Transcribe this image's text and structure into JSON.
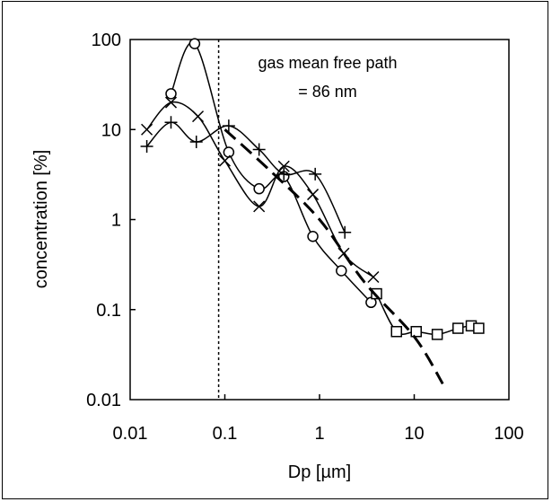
{
  "chart_data": {
    "type": "line",
    "xlabel": "Dp [µm]",
    "ylabel": "concentration [%]",
    "xscale": "log",
    "yscale": "log",
    "xlim": [
      0.01,
      100
    ],
    "ylim": [
      0.01,
      100
    ],
    "x_tick_labels": [
      "0.01",
      "0.1",
      "1",
      "10",
      "100"
    ],
    "y_tick_labels": [
      "100",
      "10",
      "1",
      "0.1",
      "0.01"
    ],
    "annotation": [
      "gas mean free path",
      "= 86 nm"
    ],
    "vertical_line": {
      "x": 0.086,
      "style": "dotted"
    },
    "series": [
      {
        "marker": "circle",
        "x": [
          0.027,
          0.048,
          0.11,
          0.23,
          0.42,
          0.85,
          1.7,
          3.5
        ],
        "y": [
          25,
          90,
          5.6,
          2.2,
          3.0,
          0.65,
          0.27,
          0.12
        ]
      },
      {
        "marker": "x",
        "x": [
          0.015,
          0.027,
          0.052,
          0.1,
          0.23,
          0.42,
          0.85,
          1.8,
          3.7
        ],
        "y": [
          10,
          20,
          14,
          4.5,
          1.4,
          3.9,
          1.9,
          0.42,
          0.23
        ]
      },
      {
        "marker": "plus",
        "x": [
          0.015,
          0.027,
          0.05,
          0.11,
          0.23,
          0.42,
          0.9,
          1.85
        ],
        "y": [
          6.5,
          12,
          7.3,
          11,
          6.0,
          3.2,
          3.2,
          0.72
        ]
      },
      {
        "marker": "square",
        "x": [
          4.0,
          6.5,
          10.5,
          17.5,
          29,
          40,
          48
        ],
        "y": [
          0.15,
          0.057,
          0.057,
          0.053,
          0.062,
          0.066,
          0.062
        ]
      },
      {
        "marker": "none",
        "style": "dashed",
        "x": [
          0.1,
          0.3,
          1.0,
          3.0,
          10,
          20
        ],
        "y": [
          10,
          3.5,
          1.0,
          0.2,
          0.05,
          0.015
        ]
      }
    ]
  }
}
